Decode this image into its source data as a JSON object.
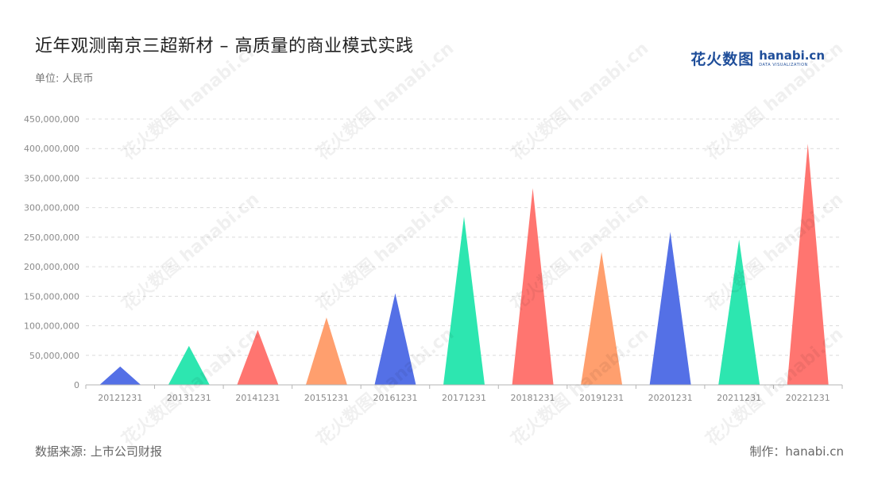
{
  "header": {
    "title": "近年观测南京三超新材 – 高质量的商业模式实践",
    "unit": "单位: 人民币"
  },
  "brand": {
    "cn": "花火数图",
    "en": "hanabi.cn",
    "en_sub": "DATA VISUALIZATION"
  },
  "footer": {
    "source": "数据来源: 上市公司财报",
    "maker": "制作：hanabi.cn"
  },
  "watermark_text": "花火数图 hanabi.cn",
  "colors": [
    "#5470e6",
    "#2de6b0",
    "#ff7570",
    "#ff9f6e"
  ],
  "chart_data": {
    "type": "bar",
    "mark": "triangle",
    "categories": [
      "20121231",
      "20131231",
      "20141231",
      "20151231",
      "20161231",
      "20171231",
      "20181231",
      "20191231",
      "20201231",
      "20211231",
      "20221231"
    ],
    "values": [
      31000000,
      66000000,
      93000000,
      114000000,
      155000000,
      285000000,
      333000000,
      225000000,
      259000000,
      246000000,
      408000000
    ],
    "ylim": [
      0,
      450000000
    ],
    "yticks": [
      0,
      50000000,
      100000000,
      150000000,
      200000000,
      250000000,
      300000000,
      350000000,
      400000000,
      450000000
    ],
    "ytick_labels": [
      "0",
      "50,000,000",
      "100,000,000",
      "150,000,000",
      "200,000,000",
      "250,000,000",
      "300,000,000",
      "350,000,000",
      "400,000,000",
      "450,000,000"
    ],
    "grid": true,
    "xlabel": "",
    "ylabel": ""
  }
}
